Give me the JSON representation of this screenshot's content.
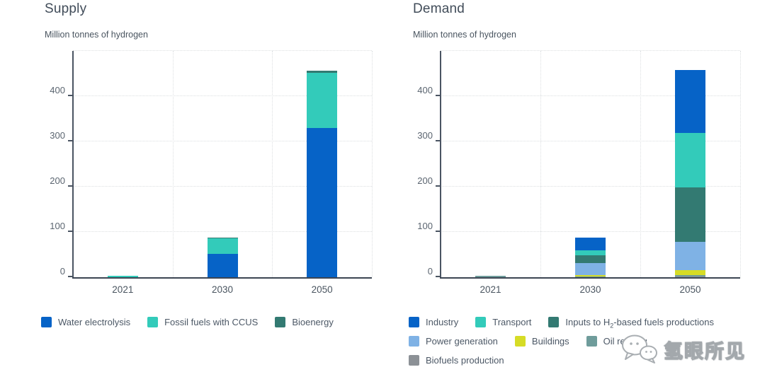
{
  "watermark": {
    "text": "氢眼所见",
    "icon": "wechat-bubbles-icon"
  },
  "chart_data": [
    {
      "type": "bar",
      "stacked": true,
      "title": "Supply",
      "subtitle": "Million tonnes of hydrogen",
      "categories": [
        "2021",
        "2030",
        "2050"
      ],
      "series_note": "series listed bottom-to-top in stack order",
      "series": [
        {
          "name": "Water electrolysis",
          "color": "#0663c7",
          "values": [
            0,
            52,
            330
          ]
        },
        {
          "name": "Fossil fuels with CCUS",
          "color": "#33cbba",
          "values": [
            3,
            35,
            122
          ]
        },
        {
          "name": "Bioenergy",
          "color": "#337a72",
          "values": [
            0,
            1,
            4
          ]
        }
      ],
      "totals": [
        3,
        88,
        456
      ],
      "ylim": [
        0,
        500
      ],
      "yticks": [
        0,
        100,
        200,
        300,
        400
      ],
      "grid": "dotted horizontal lines each 100; dotted vertical category separators",
      "legend_position": "bottom",
      "legend_rows": [
        [
          "Water electrolysis",
          "Fossil fuels with CCUS",
          "Bioenergy"
        ]
      ]
    },
    {
      "type": "bar",
      "stacked": true,
      "title": "Demand",
      "subtitle": "Million tonnes of hydrogen",
      "categories": [
        "2021",
        "2030",
        "2050"
      ],
      "series_note": "series listed bottom-to-top in stack order",
      "series": [
        {
          "name": "Biofuels production",
          "color": "#8c9196",
          "values": [
            0,
            1,
            2
          ]
        },
        {
          "name": "Oil refining",
          "color": "#6f9c9b",
          "values": [
            3,
            1,
            2
          ]
        },
        {
          "name": "Buildings",
          "color": "#d6dc26",
          "values": [
            0,
            2,
            12
          ]
        },
        {
          "name": "Power generation",
          "color": "#7fb2e5",
          "values": [
            0,
            28,
            62
          ]
        },
        {
          "name": "Inputs to H2-based fuels productions",
          "color": "#337a72",
          "values": [
            0,
            17,
            120
          ]
        },
        {
          "name": "Transport",
          "color": "#33cbba",
          "values": [
            0,
            11,
            120
          ]
        },
        {
          "name": "Industry",
          "color": "#0663c7",
          "values": [
            0,
            27,
            140
          ]
        }
      ],
      "totals": [
        3,
        87,
        458
      ],
      "ylim": [
        0,
        500
      ],
      "yticks": [
        0,
        100,
        200,
        300,
        400
      ],
      "grid": "dotted horizontal lines each 100; dotted vertical category separators",
      "legend_position": "bottom",
      "legend_rows": [
        [
          "Industry",
          "Transport",
          "Inputs to H2-based fuels productions"
        ],
        [
          "Power generation",
          "Buildings",
          "Oil refining"
        ],
        [
          "Biofuels production"
        ]
      ]
    }
  ]
}
